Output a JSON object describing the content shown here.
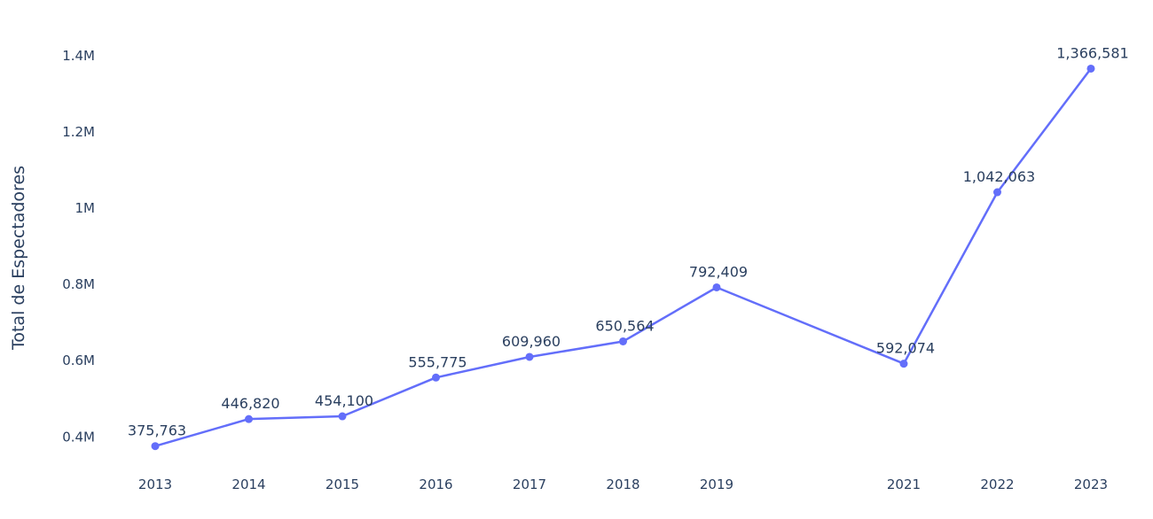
{
  "chart_data": {
    "type": "line",
    "title": "",
    "xlabel": "",
    "ylabel": "Total de Espectadores",
    "x": [
      2013,
      2014,
      2015,
      2016,
      2017,
      2018,
      2019,
      2021,
      2022,
      2023
    ],
    "series": [
      {
        "values": [
          375763,
          446820,
          454100,
          555775,
          609960,
          650564,
          792409,
          592074,
          1042063,
          1366581
        ],
        "data_labels": [
          "375,763",
          "446,820",
          "454,100",
          "555,775",
          "609,960",
          "650,564",
          "792,409",
          "592,074",
          "1,042,063",
          "1,366,581"
        ]
      }
    ],
    "x_ticks": [
      "2013",
      "2014",
      "2015",
      "2016",
      "2017",
      "2018",
      "2019",
      "2021",
      "2022",
      "2023"
    ],
    "y_ticks": [
      {
        "value": 400000,
        "label": "0.4M"
      },
      {
        "value": 600000,
        "label": "0.6M"
      },
      {
        "value": 800000,
        "label": "0.8M"
      },
      {
        "value": 1000000,
        "label": "1M"
      },
      {
        "value": 1200000,
        "label": "1.2M"
      },
      {
        "value": 1400000,
        "label": "1.4M"
      }
    ],
    "xlim": [
      2012.45,
      2023.55
    ],
    "ylim": [
      310000,
      1442000
    ],
    "grid": false,
    "legend": "none",
    "line_color": "#636efa"
  }
}
